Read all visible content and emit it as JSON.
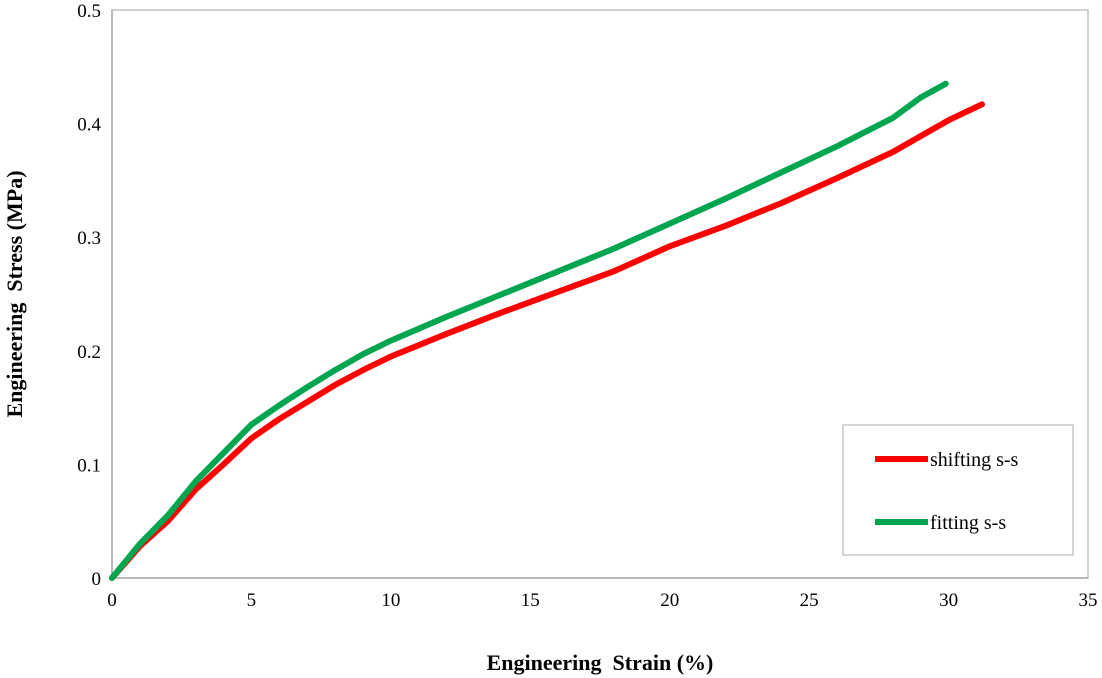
{
  "chart_data": {
    "type": "line",
    "title": "",
    "xlabel": "Engineering  Strain (%)",
    "ylabel": "Engineering  Stress (MPa)",
    "xlim": [
      0,
      35
    ],
    "ylim": [
      0,
      0.5
    ],
    "xticks": [
      "0",
      "5",
      "10",
      "15",
      "20",
      "25",
      "30",
      "35"
    ],
    "yticks": [
      "0",
      "0.1",
      "0.2",
      "0.3",
      "0.4",
      "0.5"
    ],
    "grid": false,
    "legend_position": "bottom-right",
    "series": [
      {
        "name": "shifting s-s",
        "color": "#ff0000",
        "x": [
          0,
          1,
          2,
          3,
          4,
          5,
          6,
          7,
          8,
          9,
          10,
          12,
          14,
          16,
          18,
          20,
          22,
          24,
          26,
          28,
          30,
          31.2
        ],
        "y": [
          0,
          0.028,
          0.05,
          0.078,
          0.1,
          0.123,
          0.14,
          0.155,
          0.17,
          0.183,
          0.195,
          0.215,
          0.234,
          0.252,
          0.27,
          0.292,
          0.31,
          0.33,
          0.352,
          0.375,
          0.403,
          0.417
        ]
      },
      {
        "name": "fitting s-s",
        "color": "#00a550",
        "x": [
          0,
          1,
          2,
          3,
          4,
          5,
          6,
          7,
          8,
          9,
          10,
          12,
          14,
          16,
          18,
          20,
          22,
          24,
          26,
          28,
          29,
          29.9
        ],
        "y": [
          0,
          0.03,
          0.055,
          0.085,
          0.11,
          0.135,
          0.152,
          0.168,
          0.183,
          0.197,
          0.209,
          0.23,
          0.25,
          0.27,
          0.29,
          0.312,
          0.334,
          0.357,
          0.38,
          0.405,
          0.423,
          0.435
        ]
      }
    ]
  }
}
